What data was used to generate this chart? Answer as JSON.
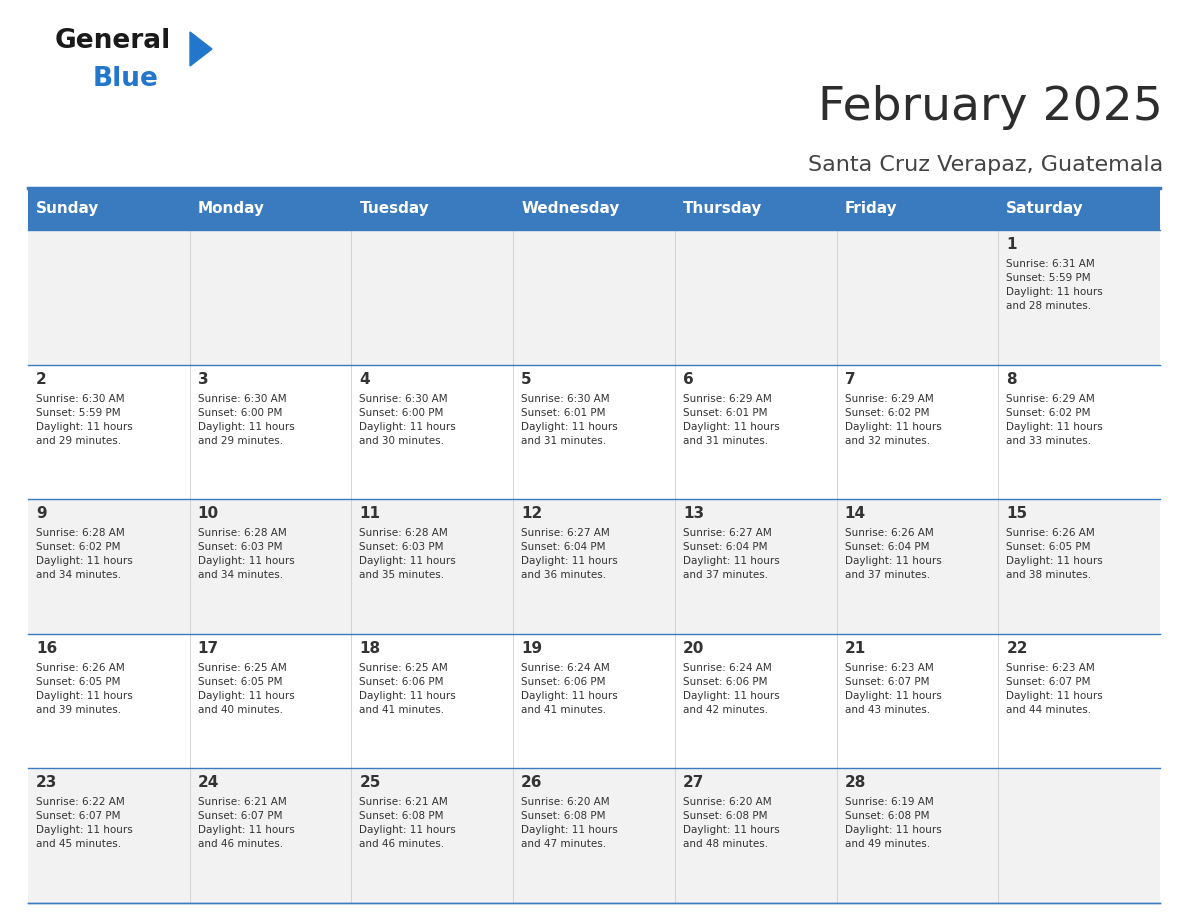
{
  "title": "February 2025",
  "subtitle": "Santa Cruz Verapaz, Guatemala",
  "header_bg_color": "#3a7bbf",
  "header_text_color": "#ffffff",
  "days_of_week": [
    "Sunday",
    "Monday",
    "Tuesday",
    "Wednesday",
    "Thursday",
    "Friday",
    "Saturday"
  ],
  "alt_row_color": "#f2f2f2",
  "white_color": "#ffffff",
  "border_color": "#3a7bbf",
  "title_color": "#2d2d2d",
  "subtitle_color": "#444444",
  "day_number_color": "#333333",
  "info_text_color": "#333333",
  "logo_black": "#1a1a1a",
  "logo_blue": "#2277cc",
  "calendar": [
    [
      null,
      null,
      null,
      null,
      null,
      null,
      {
        "day": 1,
        "sunrise": "6:31 AM",
        "sunset": "5:59 PM",
        "daylight": "11 hours and 28 minutes."
      }
    ],
    [
      {
        "day": 2,
        "sunrise": "6:30 AM",
        "sunset": "5:59 PM",
        "daylight": "11 hours and 29 minutes."
      },
      {
        "day": 3,
        "sunrise": "6:30 AM",
        "sunset": "6:00 PM",
        "daylight": "11 hours and 29 minutes."
      },
      {
        "day": 4,
        "sunrise": "6:30 AM",
        "sunset": "6:00 PM",
        "daylight": "11 hours and 30 minutes."
      },
      {
        "day": 5,
        "sunrise": "6:30 AM",
        "sunset": "6:01 PM",
        "daylight": "11 hours and 31 minutes."
      },
      {
        "day": 6,
        "sunrise": "6:29 AM",
        "sunset": "6:01 PM",
        "daylight": "11 hours and 31 minutes."
      },
      {
        "day": 7,
        "sunrise": "6:29 AM",
        "sunset": "6:02 PM",
        "daylight": "11 hours and 32 minutes."
      },
      {
        "day": 8,
        "sunrise": "6:29 AM",
        "sunset": "6:02 PM",
        "daylight": "11 hours and 33 minutes."
      }
    ],
    [
      {
        "day": 9,
        "sunrise": "6:28 AM",
        "sunset": "6:02 PM",
        "daylight": "11 hours and 34 minutes."
      },
      {
        "day": 10,
        "sunrise": "6:28 AM",
        "sunset": "6:03 PM",
        "daylight": "11 hours and 34 minutes."
      },
      {
        "day": 11,
        "sunrise": "6:28 AM",
        "sunset": "6:03 PM",
        "daylight": "11 hours and 35 minutes."
      },
      {
        "day": 12,
        "sunrise": "6:27 AM",
        "sunset": "6:04 PM",
        "daylight": "11 hours and 36 minutes."
      },
      {
        "day": 13,
        "sunrise": "6:27 AM",
        "sunset": "6:04 PM",
        "daylight": "11 hours and 37 minutes."
      },
      {
        "day": 14,
        "sunrise": "6:26 AM",
        "sunset": "6:04 PM",
        "daylight": "11 hours and 37 minutes."
      },
      {
        "day": 15,
        "sunrise": "6:26 AM",
        "sunset": "6:05 PM",
        "daylight": "11 hours and 38 minutes."
      }
    ],
    [
      {
        "day": 16,
        "sunrise": "6:26 AM",
        "sunset": "6:05 PM",
        "daylight": "11 hours and 39 minutes."
      },
      {
        "day": 17,
        "sunrise": "6:25 AM",
        "sunset": "6:05 PM",
        "daylight": "11 hours and 40 minutes."
      },
      {
        "day": 18,
        "sunrise": "6:25 AM",
        "sunset": "6:06 PM",
        "daylight": "11 hours and 41 minutes."
      },
      {
        "day": 19,
        "sunrise": "6:24 AM",
        "sunset": "6:06 PM",
        "daylight": "11 hours and 41 minutes."
      },
      {
        "day": 20,
        "sunrise": "6:24 AM",
        "sunset": "6:06 PM",
        "daylight": "11 hours and 42 minutes."
      },
      {
        "day": 21,
        "sunrise": "6:23 AM",
        "sunset": "6:07 PM",
        "daylight": "11 hours and 43 minutes."
      },
      {
        "day": 22,
        "sunrise": "6:23 AM",
        "sunset": "6:07 PM",
        "daylight": "11 hours and 44 minutes."
      }
    ],
    [
      {
        "day": 23,
        "sunrise": "6:22 AM",
        "sunset": "6:07 PM",
        "daylight": "11 hours and 45 minutes."
      },
      {
        "day": 24,
        "sunrise": "6:21 AM",
        "sunset": "6:07 PM",
        "daylight": "11 hours and 46 minutes."
      },
      {
        "day": 25,
        "sunrise": "6:21 AM",
        "sunset": "6:08 PM",
        "daylight": "11 hours and 46 minutes."
      },
      {
        "day": 26,
        "sunrise": "6:20 AM",
        "sunset": "6:08 PM",
        "daylight": "11 hours and 47 minutes."
      },
      {
        "day": 27,
        "sunrise": "6:20 AM",
        "sunset": "6:08 PM",
        "daylight": "11 hours and 48 minutes."
      },
      {
        "day": 28,
        "sunrise": "6:19 AM",
        "sunset": "6:08 PM",
        "daylight": "11 hours and 49 minutes."
      },
      null
    ]
  ]
}
